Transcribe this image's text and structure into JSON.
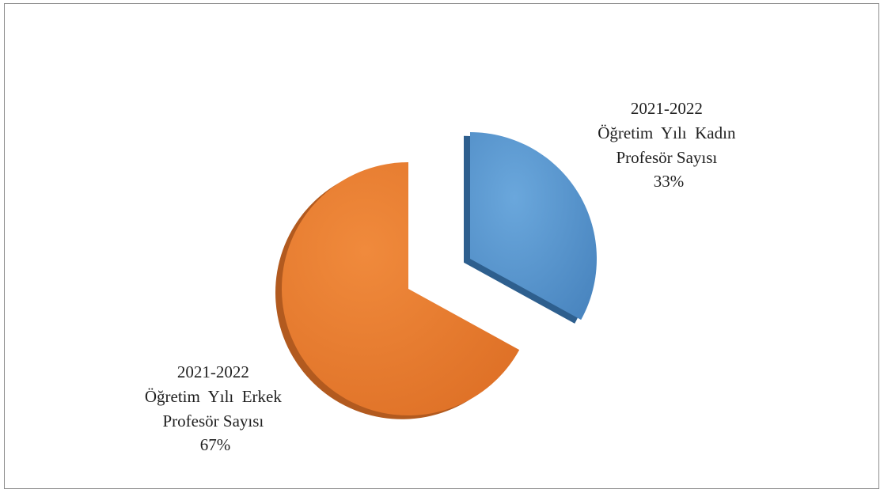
{
  "chart_data": {
    "type": "pie",
    "exploded": true,
    "style": "3d",
    "slices": [
      {
        "label_lines": [
          "2021-2022",
          "Öğretim  Yılı  Kadın",
          "Profesör Sayısı"
        ],
        "percent_label": "33%",
        "value": 33,
        "color": "#5b9bd5",
        "side_color": "#2e5f8e"
      },
      {
        "label_lines": [
          "2021-2022",
          "Öğretim  Yılı  Erkek",
          "Profesör Sayısı"
        ],
        "percent_label": "67%",
        "value": 67,
        "color": "#ed7d31",
        "side_color": "#b25a1f"
      }
    ]
  }
}
